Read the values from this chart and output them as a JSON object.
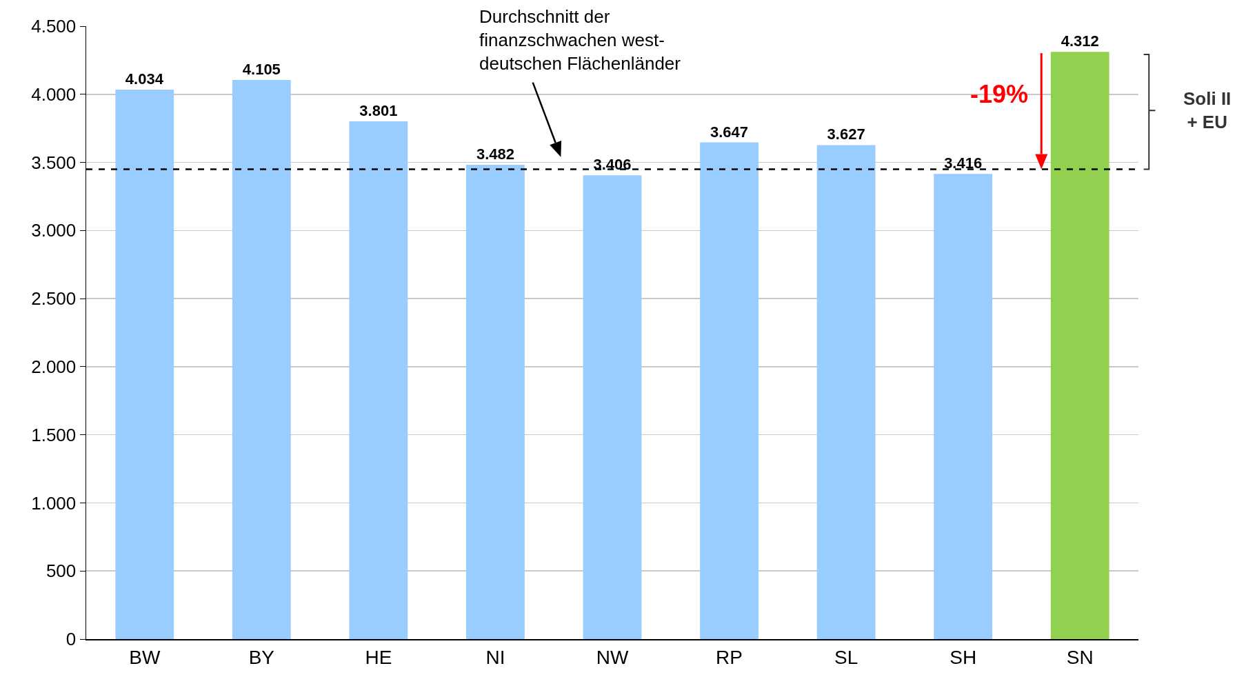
{
  "chart_data": {
    "type": "bar",
    "categories": [
      "BW",
      "BY",
      "HE",
      "NI",
      "NW",
      "RP",
      "SL",
      "SH",
      "SN"
    ],
    "values": [
      4034,
      4105,
      3801,
      3482,
      3406,
      3647,
      3627,
      3416,
      4312
    ],
    "value_labels": [
      "4.034",
      "4.105",
      "3.801",
      "3.482",
      "3.406",
      "3.647",
      "3.627",
      "3.416",
      "4.312"
    ],
    "colors": [
      "#99ccff",
      "#99ccff",
      "#99ccff",
      "#99ccff",
      "#99ccff",
      "#99ccff",
      "#99ccff",
      "#99ccff",
      "#92d050"
    ],
    "ylim": [
      0,
      4500
    ],
    "yticks": [
      {
        "value": 0,
        "label": "0"
      },
      {
        "value": 500,
        "label": "500"
      },
      {
        "value": 1000,
        "label": "1.000"
      },
      {
        "value": 1500,
        "label": "1.500"
      },
      {
        "value": 2000,
        "label": "2.000"
      },
      {
        "value": 2500,
        "label": "2.500"
      },
      {
        "value": 3000,
        "label": "3.000"
      },
      {
        "value": 3500,
        "label": "3.500"
      },
      {
        "value": 4000,
        "label": "4.000"
      },
      {
        "value": 4500,
        "label": "4.500"
      }
    ],
    "grid": "y",
    "ref_lines": [
      {
        "axis": "y",
        "value": 3450,
        "label": "Durchschnitt der\nfinanzschwachen west-\ndeutschen Flächenländer",
        "color": "#000000",
        "line_style": "dashed"
      }
    ],
    "annotations": [
      "-19%",
      "Soli II\n+ EU"
    ]
  }
}
